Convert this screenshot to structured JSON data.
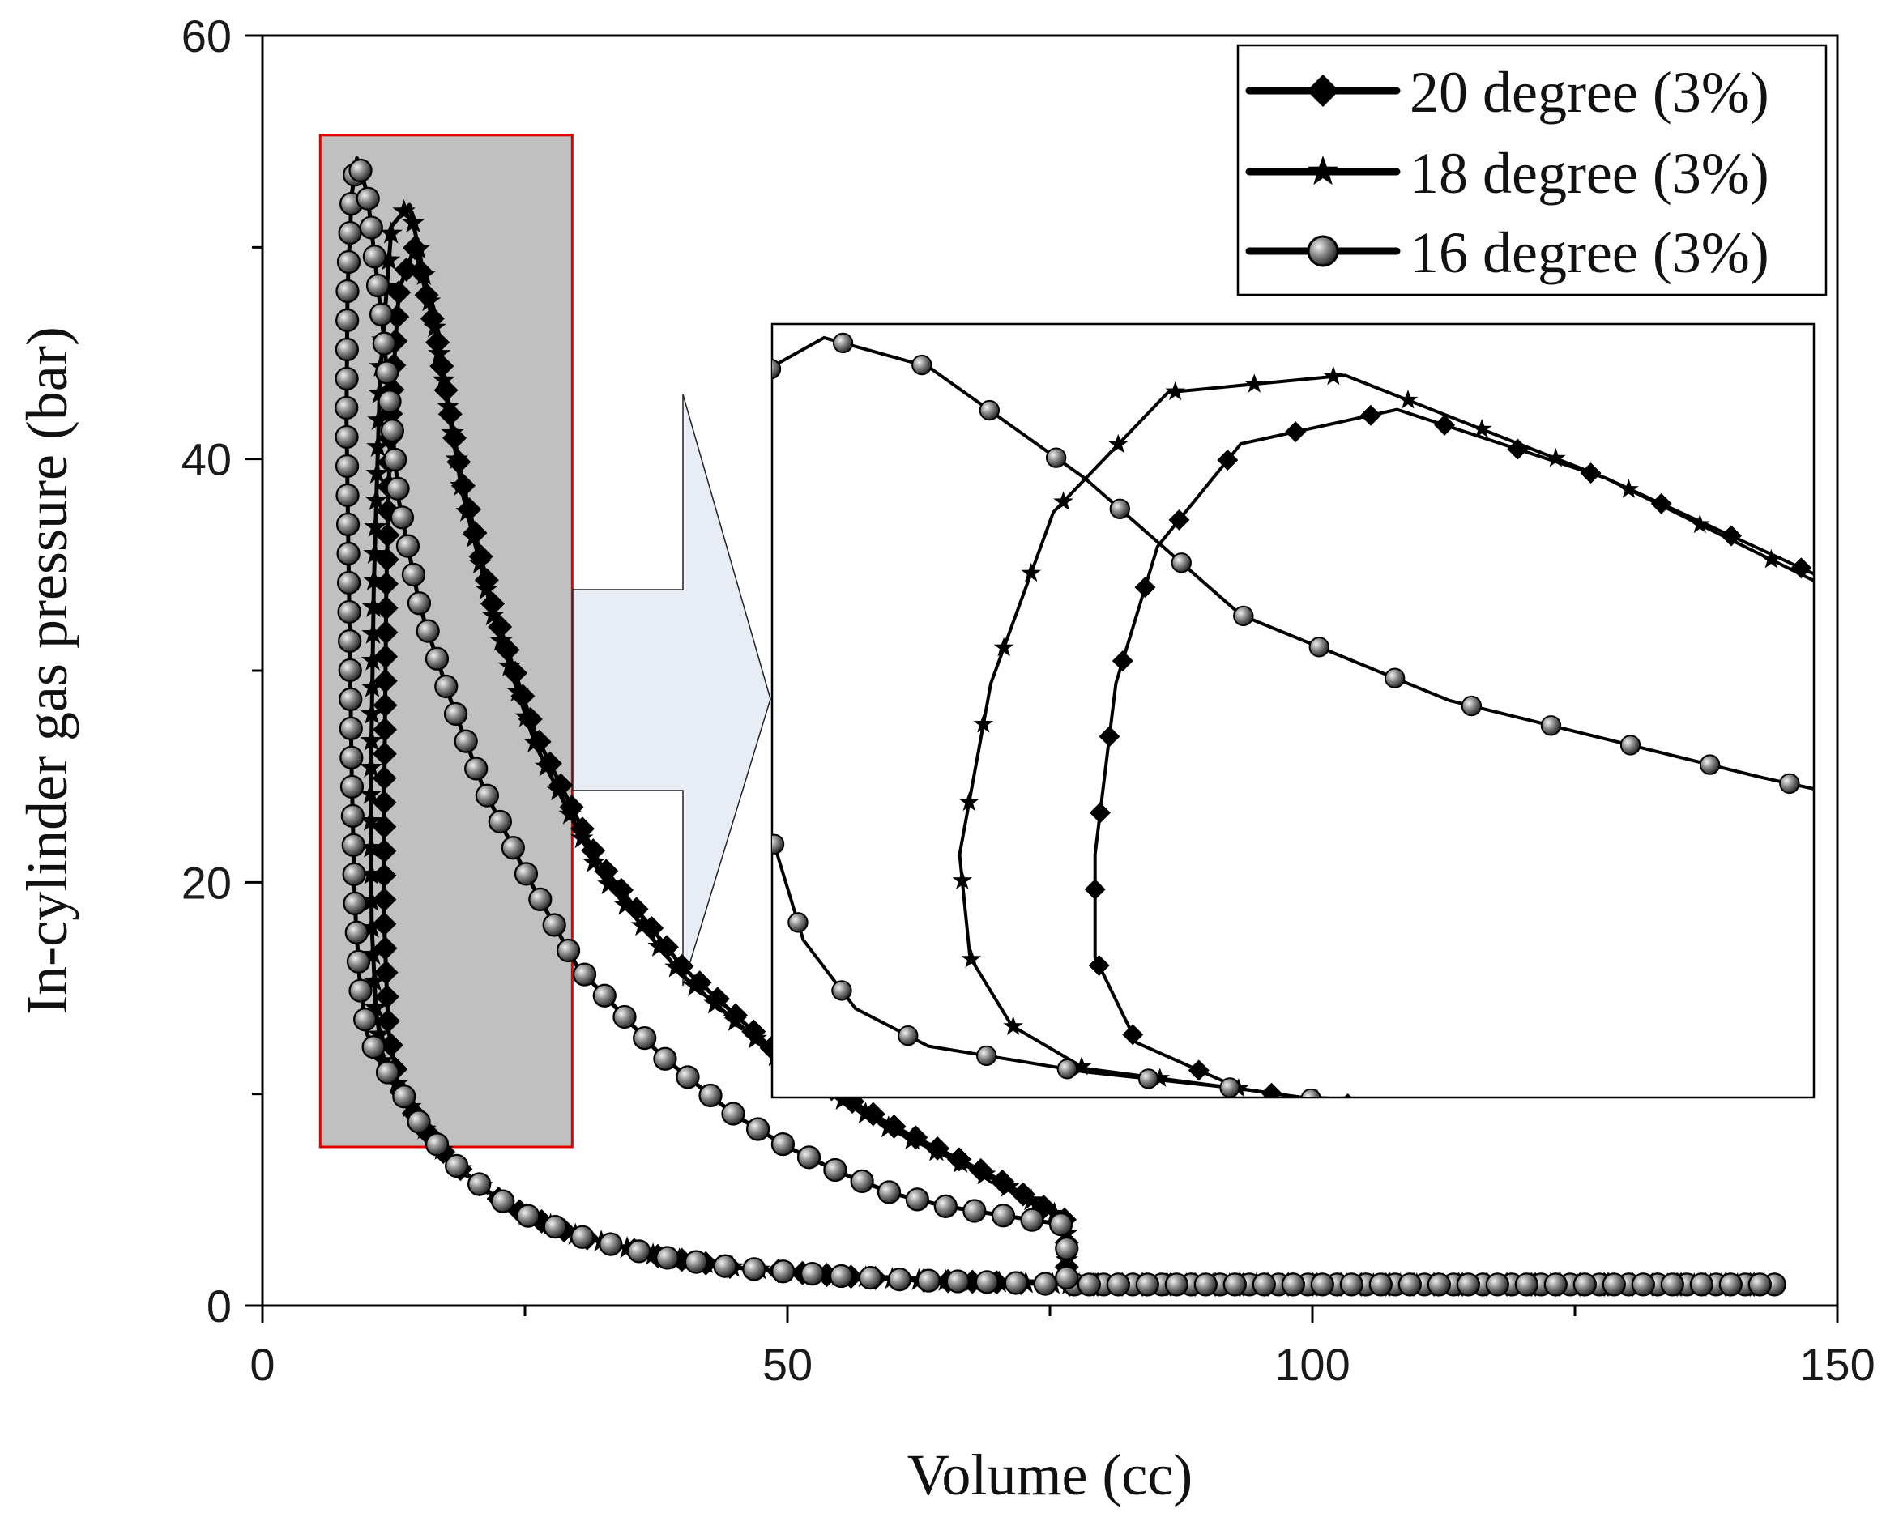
{
  "chart_data": {
    "type": "line",
    "title": "",
    "xlabel": "Volume (cc)",
    "ylabel": "In-cylinder gas pressure (bar)",
    "xlim": [
      0,
      150
    ],
    "ylim": [
      0,
      60
    ],
    "xticks": [
      0,
      50,
      100,
      150
    ],
    "xtick_labels": [
      "0",
      "50",
      "100",
      "150"
    ],
    "yticks": [
      0,
      20,
      40,
      60
    ],
    "ytick_labels": [
      "0",
      "20",
      "40",
      "60"
    ],
    "legend_position": "top-right",
    "series": [
      {
        "name": "20 degree (3%)",
        "marker": "diamond",
        "x": [
          144,
          130,
          115,
          100,
          85,
          76.6,
          76.6,
          70,
          62,
          55,
          45,
          38,
          30,
          25,
          22,
          18,
          15,
          13,
          12,
          11.6,
          11.6,
          11.8,
          12.2,
          13,
          14.5,
          16.5,
          19,
          22,
          26,
          32,
          40,
          50,
          60,
          70,
          76.6,
          76.6,
          85,
          100,
          115,
          130,
          144
        ],
        "y": [
          1.0,
          1.0,
          1.0,
          1.0,
          1.0,
          1.0,
          1.0,
          1.1,
          1.2,
          1.4,
          1.8,
          2.3,
          3.3,
          4.3,
          5.2,
          6.8,
          8.6,
          10.3,
          13,
          18,
          24,
          34,
          42,
          48,
          50,
          46,
          39,
          33,
          27,
          21,
          16,
          11.5,
          8.5,
          6.0,
          4.0,
          1.0,
          1.0,
          1.0,
          1.0,
          1.0,
          1.0
        ]
      },
      {
        "name": "18 degree (3%)",
        "marker": "star",
        "x": [
          144,
          130,
          115,
          100,
          85,
          76.6,
          76.6,
          70,
          62,
          55,
          45,
          38,
          30,
          25,
          22,
          18,
          15,
          13,
          11.5,
          10.8,
          10.4,
          10.3,
          10.6,
          11.2,
          12.3,
          14,
          16.5,
          19,
          22,
          26,
          32,
          40,
          50,
          60,
          70,
          76.6,
          76.6,
          85,
          100,
          115,
          130,
          144
        ],
        "y": [
          1.0,
          1.0,
          1.0,
          1.0,
          1.0,
          1.0,
          1.0,
          1.1,
          1.2,
          1.4,
          1.8,
          2.3,
          3.3,
          4.3,
          5.2,
          6.8,
          8.6,
          10.3,
          11.5,
          14,
          18,
          24,
          34,
          44,
          51,
          52,
          46,
          38.5,
          32.5,
          26.5,
          20.5,
          15.6,
          11.3,
          8.3,
          5.9,
          4.0,
          1.0,
          1.0,
          1.0,
          1.0,
          1.0,
          1.0
        ]
      },
      {
        "name": "16 degree (3%)",
        "marker": "sphere",
        "x": [
          144,
          130,
          115,
          100,
          85,
          76.6,
          76.6,
          70,
          62,
          55,
          45,
          38,
          30,
          25,
          22,
          18,
          15,
          13,
          11.5,
          10.0,
          9.3,
          8.8,
          8.5,
          8.2,
          8.0,
          8.1,
          8.5,
          9.0,
          10,
          11.5,
          13,
          15,
          18,
          21,
          25,
          30,
          38,
          45,
          50,
          55,
          60,
          65,
          70,
          76.6,
          76.6,
          85,
          100,
          115,
          130,
          144
        ],
        "y": [
          1.0,
          1.0,
          1.0,
          1.0,
          1.0,
          1.0,
          1.0,
          1.1,
          1.2,
          1.4,
          1.8,
          2.3,
          3.3,
          4.3,
          5.2,
          6.8,
          8.6,
          10.3,
          11.3,
          12.8,
          15,
          19,
          25,
          35,
          42,
          48,
          52.5,
          54.2,
          52.5,
          46,
          38,
          33,
          28.5,
          24.5,
          20.5,
          16,
          11.8,
          9.0,
          7.5,
          6.3,
          5.3,
          4.7,
          4.3,
          3.8,
          1.0,
          1.0,
          1.0,
          1.0,
          1.0,
          1.0
        ]
      }
    ],
    "inset": {
      "source_xlim": [
        5.5,
        29.5
      ],
      "source_ylim": [
        7.5,
        55.3
      ],
      "view_xlim": [
        8.5,
        18.5
      ],
      "view_ylim": [
        9.8,
        55.0
      ]
    }
  }
}
